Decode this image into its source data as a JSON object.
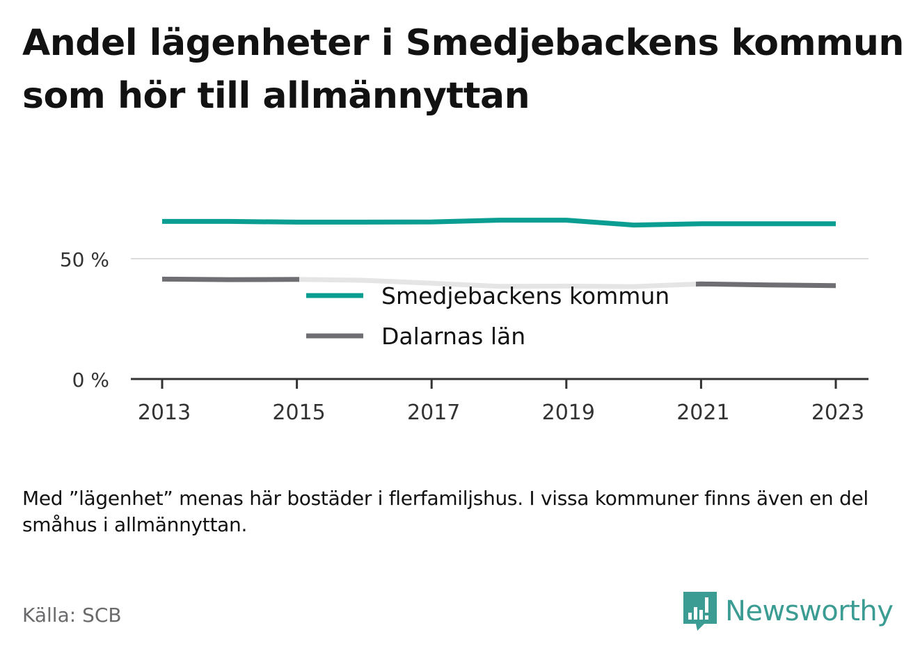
{
  "title": "Andel lägenheter i Smedjebackens kommun som hör till allmännyttan",
  "note": "Med ”lägenhet” menas här bostäder i flerfamiljshus. I vissa kommuner finns även en del småhus i allmännyttan.",
  "source": "Källa: SCB",
  "brand": {
    "name": "Newsworthy",
    "color": "#3a9c92",
    "icon": "bar-chart-speech-bubble-icon"
  },
  "chart_data": {
    "type": "line",
    "x": [
      2013,
      2014,
      2015,
      2016,
      2017,
      2018,
      2019,
      2020,
      2021,
      2022,
      2023
    ],
    "x_tick_labels": [
      "2013",
      "2015",
      "2017",
      "2019",
      "2021",
      "2023"
    ],
    "y_tick_labels": [
      "0 %",
      "50 %"
    ],
    "y_ticks": [
      0,
      50
    ],
    "ylim": [
      0,
      80
    ],
    "grid": true,
    "legend_position": "center, overlapping plot",
    "series": [
      {
        "name": "Smedjebackens kommun",
        "color": "#0a9e93",
        "values": [
          65.5,
          65.5,
          65.2,
          65.2,
          65.3,
          66.0,
          66.0,
          64.0,
          64.5,
          64.5,
          64.5
        ]
      },
      {
        "name": "Dalarnas län",
        "color": "#6e6e73",
        "values": [
          41.5,
          41.3,
          41.4,
          41.0,
          39.8,
          38.5,
          38.6,
          38.4,
          39.5,
          39.1,
          38.8
        ]
      }
    ]
  }
}
